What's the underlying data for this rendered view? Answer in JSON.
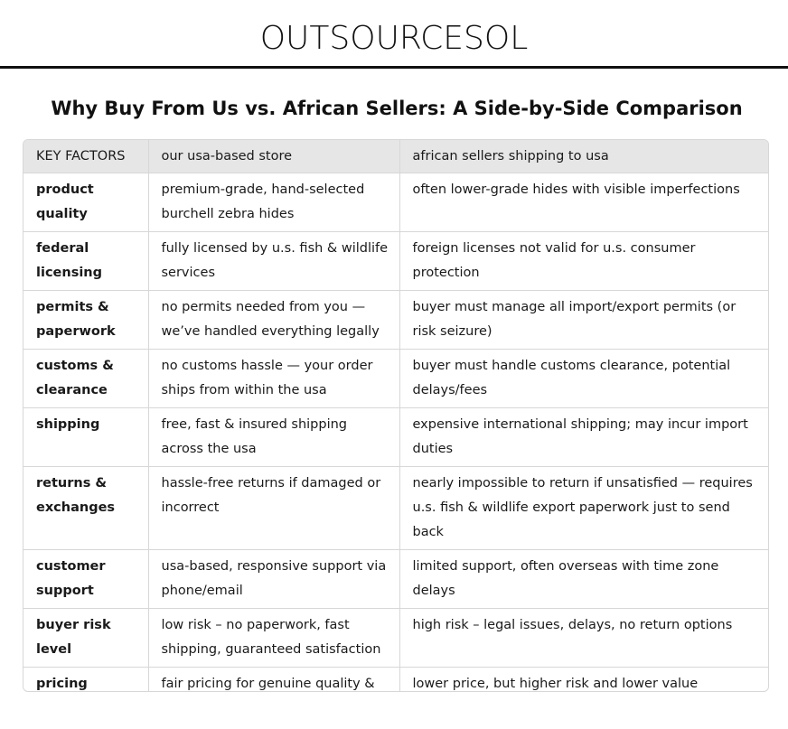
{
  "brand": "OUTSOURCESOL",
  "heading": "Why Buy From Us vs. African Sellers: A Side-by-Side Comparison",
  "table": {
    "headers": [
      "KEY FACTORS",
      "our usa-based store",
      "african sellers shipping to usa"
    ],
    "rows": [
      {
        "factor": "product quality",
        "ours": "premium-grade, hand-selected burchell zebra hides",
        "theirs": "often lower-grade hides with visible imperfections"
      },
      {
        "factor": "federal licensing",
        "ours": "fully licensed by u.s. fish & wildlife services",
        "theirs": "foreign licenses not valid for u.s. consumer protection"
      },
      {
        "factor": "permits & paperwork",
        "ours": "no permits needed from you — we’ve handled everything legally",
        "theirs": "buyer must manage all import/export permits (or risk seizure)"
      },
      {
        "factor": "customs & clearance",
        "ours": "no customs hassle — your order ships from within the usa",
        "theirs": "buyer must handle customs clearance, potential delays/fees"
      },
      {
        "factor": "shipping",
        "ours": "free, fast & insured shipping across the usa",
        "theirs": "expensive international shipping; may incur import duties"
      },
      {
        "factor": "returns & exchanges",
        "ours": "hassle-free returns if damaged or incorrect",
        "theirs": "nearly impossible to return if unsatisfied — requires u.s. fish & wildlife export paperwork just to send back"
      },
      {
        "factor": "customer support",
        "ours": "usa-based, responsive support via phone/email",
        "theirs": "limited support, often overseas with time zone delays"
      },
      {
        "factor": "buyer risk level",
        "ours": "low risk – no paperwork, fast shipping, guaranteed satisfaction",
        "theirs": "high risk – legal issues, delays, no return options"
      },
      {
        "factor": "pricing",
        "ours": "fair pricing for genuine quality & peace of mind",
        "theirs": "lower price, but higher risk and lower value"
      }
    ]
  }
}
